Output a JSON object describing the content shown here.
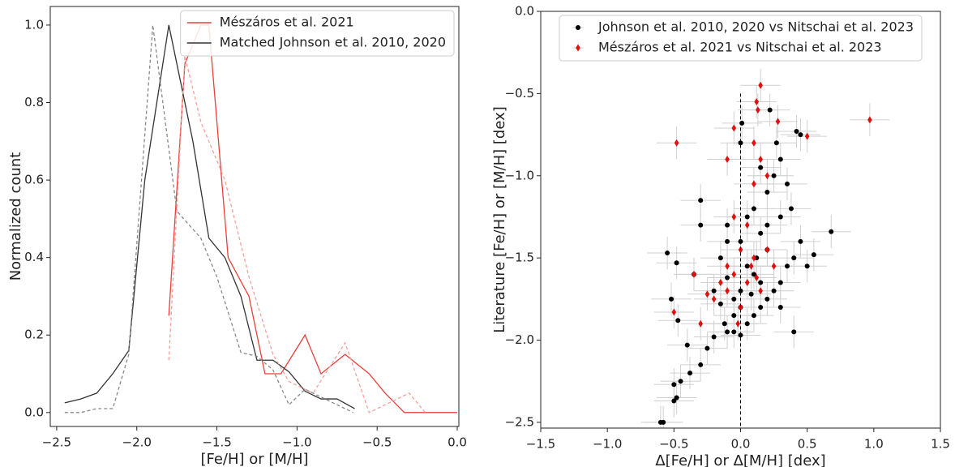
{
  "chart_data": [
    {
      "type": "line",
      "xlabel": "[Fe/H] or [M/H]",
      "ylabel": "Normalized count",
      "xlim": [
        -2.54,
        0.01
      ],
      "ylim": [
        -0.036,
        1.048
      ],
      "xticks": [
        {
          "value": -2.5,
          "label": "−2.5"
        },
        {
          "value": -2.0,
          "label": "−2.0"
        },
        {
          "value": -1.5,
          "label": "−1.5"
        },
        {
          "value": -1.0,
          "label": "−1.0"
        },
        {
          "value": -0.5,
          "label": "−0.5"
        },
        {
          "value": 0,
          "label": "0.0"
        }
      ],
      "yticks": [
        {
          "value": 0,
          "label": "0.0"
        },
        0.2,
        0.4,
        0.6,
        0.8,
        {
          "value": 1,
          "label": "1.0"
        }
      ],
      "legend": "upper right",
      "series": [
        {
          "name": "Mészáros et al. 2021",
          "color": "#e8403a",
          "x": [
            -1.8,
            -1.7,
            -1.6,
            -1.55,
            -1.43,
            -1.3,
            -1.2,
            -1.1,
            -0.95,
            -0.85,
            -0.7,
            -0.55,
            -0.45,
            -0.33,
            0.0
          ],
          "values": [
            0.25,
            0.9,
            1.0,
            1.0,
            0.4,
            0.3,
            0.1,
            0.1,
            0.2,
            0.1,
            0.15,
            0.1,
            0.05,
            0.0,
            0.0
          ]
        },
        {
          "name": "Matched Johnson et al. 2010, 2020",
          "color": "#333333",
          "x": [
            -2.45,
            -2.35,
            -2.25,
            -2.15,
            -2.05,
            -1.95,
            -1.8,
            -1.65,
            -1.55,
            -1.45,
            -1.35,
            -1.25,
            -1.15,
            -1.05,
            -0.95,
            -0.85,
            -0.75,
            -0.64
          ],
          "values": [
            0.025,
            0.035,
            0.05,
            0.1,
            0.16,
            0.6,
            1.0,
            0.7,
            0.45,
            0.4,
            0.3,
            0.135,
            0.135,
            0.105,
            0.055,
            0.035,
            0.035,
            0.01
          ]
        },
        {
          "color": "#f5a09a",
          "dash": true,
          "x": [
            -1.8,
            -1.7,
            -1.6,
            -1.45,
            -1.3,
            -1.15,
            -1.05,
            -0.9,
            -0.7,
            -0.55,
            -0.3,
            -0.2
          ],
          "values": [
            0.135,
            0.92,
            0.75,
            0.6,
            0.35,
            0.15,
            0.08,
            0.05,
            0.18,
            0.0,
            0.05,
            0.0
          ]
        },
        {
          "color": "#888888",
          "dash": true,
          "x": [
            -2.45,
            -2.35,
            -2.25,
            -2.15,
            -2.05,
            -1.9,
            -1.75,
            -1.6,
            -1.5,
            -1.35,
            -1.25,
            -1.15,
            -1.05,
            -0.95,
            -0.85,
            -0.75,
            -0.65
          ],
          "values": [
            0.0,
            0.0,
            0.01,
            0.01,
            0.15,
            1.0,
            0.52,
            0.45,
            0.35,
            0.155,
            0.145,
            0.11,
            0.02,
            0.06,
            0.04,
            0.02,
            0.0
          ]
        }
      ]
    },
    {
      "type": "scatter",
      "xlabel": "Δ[Fe/H] or Δ[M/H] [dex]",
      "ylabel": "Literature [Fe/H] or [M/H] [dex]",
      "xlim": [
        -1.5,
        1.5
      ],
      "ylim": [
        -2.535,
        0
      ],
      "xticks": [
        {
          "value": -1.5,
          "label": "−1.5"
        },
        {
          "value": -1.0,
          "label": "−1.0"
        },
        {
          "value": -0.5,
          "label": "−0.5"
        },
        {
          "value": 0,
          "label": "0.0"
        },
        0.5,
        {
          "value": 1,
          "label": "1.0"
        },
        1.5
      ],
      "yticks": [
        {
          "value": 0,
          "label": "0.0"
        },
        {
          "value": -0.5,
          "label": "−0.5"
        },
        {
          "value": -1.0,
          "label": "−1.0"
        },
        {
          "value": -1.5,
          "label": "−1.5"
        },
        {
          "value": -2.0,
          "label": "−2.0"
        },
        {
          "value": -2.5,
          "label": "−2.5"
        }
      ],
      "legend": "upper center",
      "vline": {
        "x": 0,
        "top": -0.5
      },
      "series": [
        {
          "name": "Johnson et al. 2010, 2020 vs Nitschai et al. 2023",
          "color": "#000000",
          "marker": "circle",
          "xerr": 0.15,
          "yerr": 0.1,
          "x": [
            -0.58,
            -0.6,
            -0.5,
            -0.48,
            -0.45,
            -0.5,
            -0.38,
            -0.3,
            -0.25,
            -0.4,
            -0.2,
            -0.1,
            0.0,
            0.05,
            -0.05,
            0.1,
            0.15,
            0.2,
            -0.15,
            -0.05,
            0.0,
            0.25,
            0.3,
            0.1,
            -0.1,
            0.05,
            0.35,
            0.4,
            -0.15,
            0.2,
            0.45,
            0.68,
            0.0,
            0.15,
            -0.3,
            -0.1,
            0.3,
            0.1,
            -0.3,
            0.2,
            0.35,
            0.25,
            0.15,
            0.3,
            0.45,
            0.42,
            0.27,
            0.0,
            0.01,
            0.22,
            -0.55,
            -0.48,
            -0.52,
            -0.47,
            -0.35,
            -0.2,
            -0.1,
            0.05,
            0.15,
            0.3,
            0.5,
            0.55,
            0.4,
            0.0,
            -0.05,
            0.08,
            -0.12,
            0.12,
            0.2,
            0.38
          ],
          "values": [
            -2.5,
            -2.5,
            -2.37,
            -2.35,
            -2.25,
            -2.27,
            -2.2,
            -2.15,
            -2.05,
            -2.03,
            -1.98,
            -1.95,
            -1.97,
            -1.9,
            -1.85,
            -1.85,
            -1.8,
            -1.75,
            -1.78,
            -1.75,
            -1.7,
            -1.7,
            -1.65,
            -1.6,
            -1.62,
            -1.55,
            -1.55,
            -1.5,
            -1.5,
            -1.45,
            -1.4,
            -1.34,
            -1.4,
            -1.35,
            -1.3,
            -1.3,
            -1.25,
            -1.2,
            -1.15,
            -1.1,
            -1.05,
            -1.0,
            -0.95,
            -0.9,
            -0.75,
            -0.73,
            -0.8,
            -0.8,
            -0.68,
            -0.6,
            -1.47,
            -1.53,
            -1.75,
            -1.88,
            -1.6,
            -1.7,
            -1.4,
            -1.25,
            -1.65,
            -1.8,
            -1.55,
            -1.48,
            -1.95,
            -1.8,
            -1.95,
            -1.72,
            -1.9,
            -1.5,
            -1.3,
            -1.2
          ]
        },
        {
          "name": "Mészáros et al. 2021 vs Nitschai et al. 2023",
          "color": "#e01010",
          "marker": "diamond",
          "xerr": 0.15,
          "yerr": 0.1,
          "x": [
            -0.48,
            0.15,
            0.12,
            0.13,
            0.28,
            0.5,
            0.97,
            -0.05,
            -0.1,
            0.1,
            0.15,
            0.2,
            0.1,
            -0.05,
            0.05,
            0.0,
            -0.1,
            0.1,
            -0.05,
            0.05,
            -0.15,
            0.15,
            -0.2,
            0.0,
            -0.1,
            0.08,
            -0.35,
            -0.25,
            -0.3,
            -0.5,
            0.2,
            0.25,
            -0.02,
            0.12
          ],
          "values": [
            -0.8,
            -0.45,
            -0.55,
            -0.6,
            -0.67,
            -0.76,
            -0.66,
            -0.71,
            -0.9,
            -0.8,
            -0.9,
            -1.0,
            -1.05,
            -1.25,
            -1.3,
            -1.45,
            -1.55,
            -1.5,
            -1.6,
            -1.65,
            -1.65,
            -1.7,
            -1.75,
            -1.8,
            -1.7,
            -1.55,
            -1.6,
            -1.72,
            -1.9,
            -1.83,
            -1.45,
            -1.55,
            -1.9,
            -1.62
          ]
        }
      ]
    }
  ]
}
